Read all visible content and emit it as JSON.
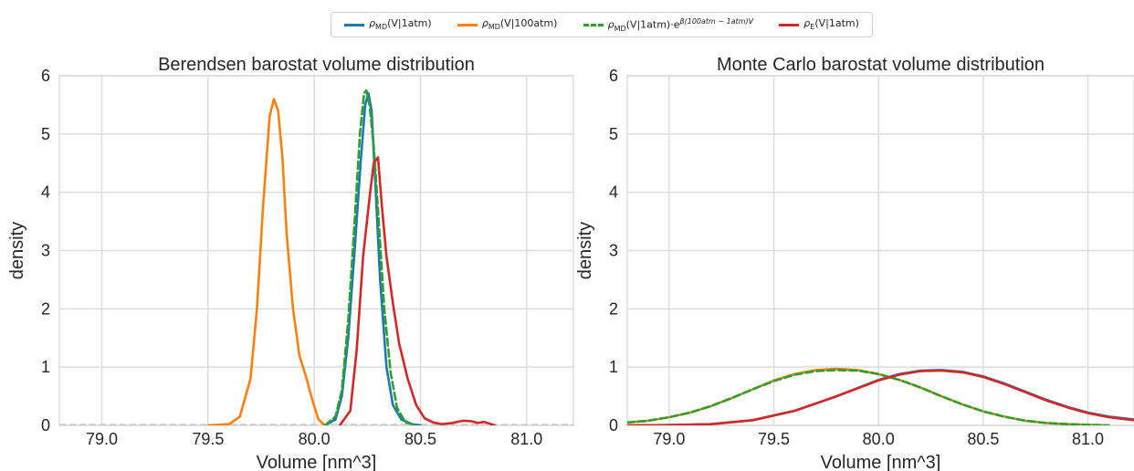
{
  "legend": {
    "entries": [
      {
        "rho": "ρ",
        "sub": "MD",
        "text": "(V|1atm)",
        "sup": "",
        "color": "#1f77b4",
        "style": "solid"
      },
      {
        "rho": "ρ",
        "sub": "MD",
        "text": "(V|100atm)",
        "sup": "",
        "color": "#ff7f0e",
        "style": "solid"
      },
      {
        "rho": "ρ",
        "sub": "MD",
        "text": "(V|1atm)·e",
        "sup": "β(100atm − 1atm)V",
        "color": "#2ca02c",
        "style": "dashed"
      },
      {
        "rho": "ρ",
        "sub": "E",
        "text": "(V|1atm)",
        "sup": "",
        "color": "#d62728",
        "style": "solid"
      }
    ]
  },
  "chart_data": [
    {
      "type": "line",
      "title": "Berendsen barostat volume distribution",
      "xlabel": "Volume [nm^3]",
      "ylabel": "density",
      "xlim": [
        78.8,
        81.22
      ],
      "ylim": [
        0,
        6
      ],
      "xticks": [
        79.0,
        79.5,
        80.0,
        80.5,
        81.0
      ],
      "xtick_labels": [
        "79.0",
        "79.5",
        "80.0",
        "80.5",
        "81.0"
      ],
      "yticks": [
        0,
        1,
        2,
        3,
        4,
        5,
        6
      ],
      "ytick_labels": [
        "0",
        "1",
        "2",
        "3",
        "4",
        "5",
        "6"
      ],
      "grid": true,
      "baseline_dashed": true,
      "series": [
        {
          "color": "#1f77b4",
          "dash": false,
          "x": [
            80.05,
            80.1,
            80.13,
            80.16,
            80.19,
            80.22,
            80.24,
            80.255,
            80.27,
            80.29,
            80.31,
            80.34,
            80.37,
            80.41,
            80.46,
            80.5
          ],
          "y": [
            0,
            0.1,
            0.5,
            1.5,
            3.0,
            4.6,
            5.5,
            5.7,
            5.4,
            4.0,
            2.5,
            1.0,
            0.35,
            0.1,
            0.02,
            0
          ]
        },
        {
          "color": "#ff7f0e",
          "dash": false,
          "x": [
            79.5,
            79.6,
            79.65,
            79.7,
            79.73,
            79.76,
            79.79,
            79.81,
            79.83,
            79.85,
            79.87,
            79.9,
            79.93,
            79.96,
            79.99,
            80.02,
            80.05
          ],
          "y": [
            0,
            0.02,
            0.15,
            0.8,
            2.0,
            3.8,
            5.3,
            5.6,
            5.4,
            4.6,
            3.3,
            2.0,
            1.2,
            0.85,
            0.45,
            0.1,
            0
          ]
        },
        {
          "color": "#2ca02c",
          "dash": true,
          "x": [
            80.05,
            80.1,
            80.13,
            80.16,
            80.19,
            80.215,
            80.235,
            80.245,
            80.26,
            80.28,
            80.3,
            80.33,
            80.36,
            80.39,
            80.43,
            80.48
          ],
          "y": [
            0,
            0.15,
            0.6,
            1.8,
            3.5,
            5.0,
            5.7,
            5.75,
            5.5,
            4.8,
            3.7,
            2.0,
            0.9,
            0.3,
            0.05,
            0
          ]
        },
        {
          "color": "#d62728",
          "dash": false,
          "x": [
            80.12,
            80.17,
            80.2,
            80.23,
            80.26,
            80.28,
            80.3,
            80.32,
            80.34,
            80.37,
            80.4,
            80.44,
            80.48,
            80.52,
            80.56,
            80.6,
            80.65,
            80.7,
            80.74,
            80.77,
            80.8,
            80.85
          ],
          "y": [
            0,
            0.25,
            1.3,
            2.9,
            3.9,
            4.5,
            4.6,
            3.7,
            2.9,
            2.1,
            1.4,
            0.8,
            0.35,
            0.12,
            0.05,
            0.02,
            0.04,
            0.08,
            0.07,
            0.04,
            0.06,
            0
          ]
        }
      ]
    },
    {
      "type": "line",
      "title": "Monte Carlo barostat volume distribution",
      "xlabel": "Volume [nm^3]",
      "ylabel": "density",
      "xlim": [
        78.8,
        81.22
      ],
      "ylim": [
        0,
        6
      ],
      "xticks": [
        79.0,
        79.5,
        80.0,
        80.5,
        81.0
      ],
      "xtick_labels": [
        "79.0",
        "79.5",
        "80.0",
        "80.5",
        "81.0"
      ],
      "yticks": [
        0,
        1,
        2,
        3,
        4,
        5,
        6
      ],
      "ytick_labels": [
        "0",
        "1",
        "2",
        "3",
        "4",
        "5",
        "6"
      ],
      "grid": true,
      "baseline_dashed": false,
      "series": [
        {
          "color": "#1f77b4",
          "dash": false,
          "x": [
            78.8,
            79.0,
            79.2,
            79.4,
            79.6,
            79.8,
            80.0,
            80.1,
            80.2,
            80.3,
            80.4,
            80.5,
            80.6,
            80.7,
            80.8,
            80.9,
            81.0,
            81.1,
            81.22
          ],
          "y": [
            0,
            0.005,
            0.02,
            0.09,
            0.25,
            0.5,
            0.78,
            0.88,
            0.94,
            0.95,
            0.92,
            0.84,
            0.72,
            0.58,
            0.44,
            0.32,
            0.22,
            0.15,
            0.1
          ]
        },
        {
          "color": "#ff7f0e",
          "dash": false,
          "x": [
            78.8,
            78.9,
            79.0,
            79.1,
            79.2,
            79.3,
            79.4,
            79.5,
            79.6,
            79.7,
            79.8,
            79.9,
            80.0,
            80.1,
            80.2,
            80.3,
            80.4,
            80.5,
            80.6,
            80.7,
            80.8,
            80.9,
            81.0,
            81.1
          ],
          "y": [
            0.05,
            0.08,
            0.14,
            0.22,
            0.33,
            0.47,
            0.62,
            0.77,
            0.88,
            0.95,
            0.97,
            0.95,
            0.88,
            0.78,
            0.65,
            0.5,
            0.36,
            0.24,
            0.15,
            0.08,
            0.04,
            0.02,
            0.01,
            0
          ]
        },
        {
          "color": "#2ca02c",
          "dash": true,
          "x": [
            78.8,
            78.9,
            79.0,
            79.1,
            79.2,
            79.3,
            79.4,
            79.5,
            79.6,
            79.7,
            79.8,
            79.9,
            80.0,
            80.1,
            80.2,
            80.3,
            80.4,
            80.5,
            80.6,
            80.7,
            80.8,
            80.9,
            81.0,
            81.1
          ],
          "y": [
            0.05,
            0.08,
            0.14,
            0.22,
            0.33,
            0.47,
            0.62,
            0.76,
            0.87,
            0.93,
            0.95,
            0.94,
            0.88,
            0.78,
            0.65,
            0.5,
            0.36,
            0.24,
            0.15,
            0.08,
            0.04,
            0.02,
            0.01,
            0
          ]
        },
        {
          "color": "#d62728",
          "dash": false,
          "x": [
            78.8,
            79.0,
            79.2,
            79.4,
            79.6,
            79.8,
            80.0,
            80.1,
            80.2,
            80.3,
            80.4,
            80.5,
            80.6,
            80.7,
            80.8,
            80.9,
            81.0,
            81.1,
            81.22
          ],
          "y": [
            0,
            0.005,
            0.02,
            0.09,
            0.25,
            0.5,
            0.77,
            0.87,
            0.93,
            0.94,
            0.91,
            0.83,
            0.71,
            0.57,
            0.43,
            0.31,
            0.21,
            0.14,
            0.09
          ]
        }
      ]
    }
  ]
}
